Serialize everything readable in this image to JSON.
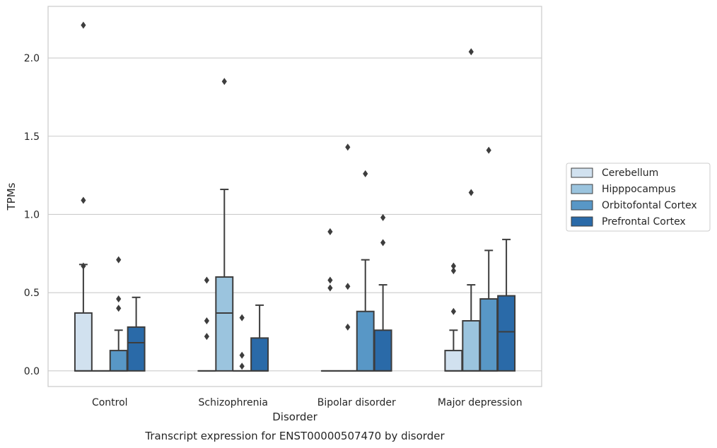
{
  "chart_data": {
    "type": "box",
    "caption": "Transcript expression for ENST00000507470 by disorder",
    "xlabel": "Disorder",
    "ylabel": "TPMs",
    "ylim": [
      -0.1,
      2.33
    ],
    "yticks": [
      0.0,
      0.5,
      1.0,
      1.5,
      2.0
    ],
    "ytick_labels": [
      "0.0",
      "0.5",
      "1.0",
      "1.5",
      "2.0"
    ],
    "grid": "horizontal",
    "legend_position": "right",
    "categories": [
      "Control",
      "Schizophrenia",
      "Bipolar disorder",
      "Major depression"
    ],
    "series": [
      {
        "name": "Cerebellum",
        "color": "#d1e1ef",
        "boxes": [
          {
            "q1": 0.0,
            "median": 0.0,
            "q3": 0.37,
            "whisker_low": 0.0,
            "whisker_high": 0.68,
            "outliers": [
              2.21,
              1.09,
              0.67
            ]
          },
          {
            "q1": 0.0,
            "median": 0.0,
            "q3": 0.0,
            "whisker_low": 0.0,
            "whisker_high": 0.0,
            "outliers": [
              0.58,
              0.32,
              0.22
            ]
          },
          {
            "q1": 0.0,
            "median": 0.0,
            "q3": 0.0,
            "whisker_low": 0.0,
            "whisker_high": 0.0,
            "outliers": [
              0.89,
              0.58,
              0.53
            ]
          },
          {
            "q1": 0.0,
            "median": 0.0,
            "q3": 0.13,
            "whisker_low": 0.0,
            "whisker_high": 0.26,
            "outliers": [
              0.67,
              0.64,
              0.38
            ]
          }
        ]
      },
      {
        "name": "Hipppocampus",
        "color": "#9bc4de",
        "boxes": [
          {
            "q1": 0.0,
            "median": 0.0,
            "q3": 0.0,
            "whisker_low": 0.0,
            "whisker_high": 0.0,
            "outliers": []
          },
          {
            "q1": 0.0,
            "median": 0.37,
            "q3": 0.6,
            "whisker_low": 0.0,
            "whisker_high": 1.16,
            "outliers": [
              1.85
            ]
          },
          {
            "q1": 0.0,
            "median": 0.0,
            "q3": 0.0,
            "whisker_low": 0.0,
            "whisker_high": 0.0,
            "outliers": [
              1.43,
              0.54,
              0.28
            ]
          },
          {
            "q1": 0.0,
            "median": 0.0,
            "q3": 0.32,
            "whisker_low": 0.0,
            "whisker_high": 0.55,
            "outliers": [
              2.04,
              1.14
            ]
          }
        ]
      },
      {
        "name": "Orbitofontal Cortex",
        "color": "#5897c6",
        "boxes": [
          {
            "q1": 0.0,
            "median": 0.0,
            "q3": 0.13,
            "whisker_low": 0.0,
            "whisker_high": 0.26,
            "outliers": [
              0.71,
              0.46,
              0.4
            ]
          },
          {
            "q1": 0.0,
            "median": 0.0,
            "q3": 0.0,
            "whisker_low": 0.0,
            "whisker_high": 0.0,
            "outliers": [
              0.34,
              0.1,
              0.03
            ]
          },
          {
            "q1": 0.0,
            "median": 0.0,
            "q3": 0.38,
            "whisker_low": 0.0,
            "whisker_high": 0.71,
            "outliers": [
              1.26
            ]
          },
          {
            "q1": 0.0,
            "median": 0.0,
            "q3": 0.46,
            "whisker_low": 0.0,
            "whisker_high": 0.77,
            "outliers": [
              1.41
            ]
          }
        ]
      },
      {
        "name": "Prefrontal Cortex",
        "color": "#2a6aa8",
        "boxes": [
          {
            "q1": 0.0,
            "median": 0.18,
            "q3": 0.28,
            "whisker_low": 0.0,
            "whisker_high": 0.47,
            "outliers": []
          },
          {
            "q1": 0.0,
            "median": 0.0,
            "q3": 0.21,
            "whisker_low": 0.0,
            "whisker_high": 0.42,
            "outliers": []
          },
          {
            "q1": 0.0,
            "median": 0.0,
            "q3": 0.26,
            "whisker_low": 0.0,
            "whisker_high": 0.55,
            "outliers": [
              0.98,
              0.82
            ]
          },
          {
            "q1": 0.0,
            "median": 0.25,
            "q3": 0.48,
            "whisker_low": 0.0,
            "whisker_high": 0.84,
            "outliers": []
          }
        ]
      }
    ]
  }
}
